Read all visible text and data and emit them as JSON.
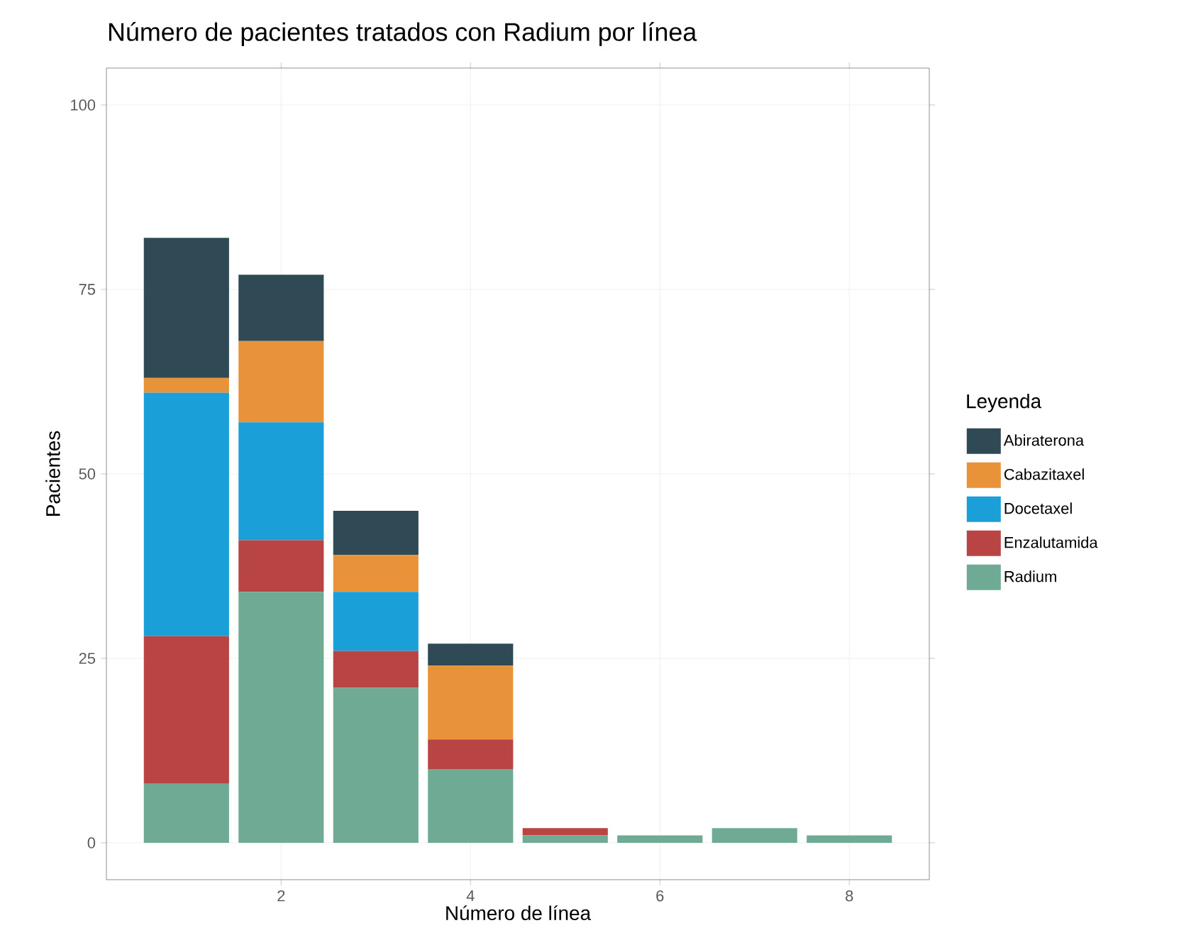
{
  "chart_data": {
    "type": "bar",
    "title": "Número de pacientes tratados con Radium por línea",
    "xlabel": "Número de línea",
    "ylabel": "Pacientes",
    "legend_title": "Leyenda",
    "x": [
      1,
      2,
      3,
      4,
      5,
      6,
      7,
      8
    ],
    "series": [
      {
        "name": "Radium",
        "color": "#6fab94",
        "values": [
          8,
          34,
          21,
          10,
          1,
          1,
          2,
          1
        ]
      },
      {
        "name": "Enzalutamida",
        "color": "#b84444",
        "values": [
          20,
          7,
          5,
          4,
          1,
          0,
          0,
          0
        ]
      },
      {
        "name": "Docetaxel",
        "color": "#1a9fd9",
        "values": [
          33,
          16,
          8,
          0,
          0,
          0,
          0,
          0
        ]
      },
      {
        "name": "Cabazitaxel",
        "color": "#e8923a",
        "values": [
          2,
          11,
          5,
          10,
          0,
          0,
          0,
          0
        ]
      },
      {
        "name": "Abiraterona",
        "color": "#2f4a55",
        "values": [
          19,
          9,
          6,
          3,
          0,
          0,
          0,
          0
        ]
      }
    ],
    "stacked": true,
    "xlim": [
      0.155,
      8.845
    ],
    "ylim": [
      -5,
      105
    ],
    "xticks": [
      2,
      4,
      6,
      8
    ],
    "yticks": [
      0,
      25,
      50,
      75,
      100
    ],
    "grid": true,
    "legend": "right"
  }
}
